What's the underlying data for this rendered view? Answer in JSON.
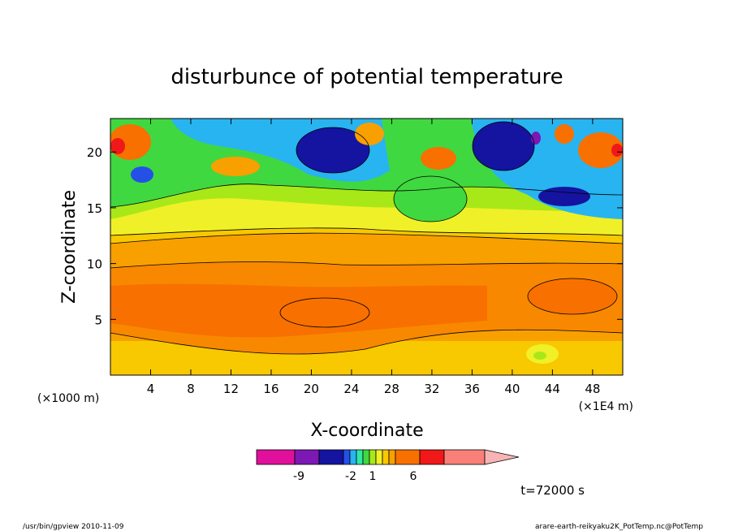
{
  "chart_data": {
    "type": "heatmap",
    "title": "disturbunce of potential temperature",
    "xlabel": "X-coordinate",
    "ylabel": "Z-coordinate",
    "x_unit_left": "(×1000 m)",
    "x_unit_right": "(×1E4 m)",
    "xlim": [
      0,
      51
    ],
    "ylim": [
      0,
      23
    ],
    "xticks": [
      4,
      8,
      12,
      16,
      20,
      24,
      28,
      32,
      36,
      40,
      44,
      48
    ],
    "yticks": [
      5,
      10,
      15,
      20
    ],
    "time_label": "t=72000 s",
    "colorbar": {
      "colors": [
        "#e0109c",
        "#7c18b4",
        "#1414a0",
        "#2450e8",
        "#28b4f0",
        "#30e8a8",
        "#40d840",
        "#a8e818",
        "#f0f028",
        "#f8c800",
        "#f8a000",
        "#f87000",
        "#f01818",
        "#f88078",
        "#f8b4b4"
      ],
      "tick_labels": [
        "-9",
        "-2",
        "1",
        "6"
      ],
      "extend": "max"
    },
    "field_regions": [
      {
        "name": "lower-warm-band",
        "z_range": [
          1,
          12
        ],
        "level": "orange"
      },
      {
        "name": "core-warm-band",
        "z_range": [
          3.5,
          10
        ],
        "level": "dark-orange"
      },
      {
        "name": "upper-cold-pools",
        "z_range": [
          14,
          23
        ],
        "level": "blue"
      },
      {
        "name": "upper-warm-cells",
        "z_range": [
          17,
          23
        ],
        "level": "red"
      }
    ]
  },
  "footer": {
    "left": "/usr/bin/gpview   2010-11-09",
    "right": "arare-earth-reikyaku2K_PotTemp.nc@PotTemp"
  }
}
